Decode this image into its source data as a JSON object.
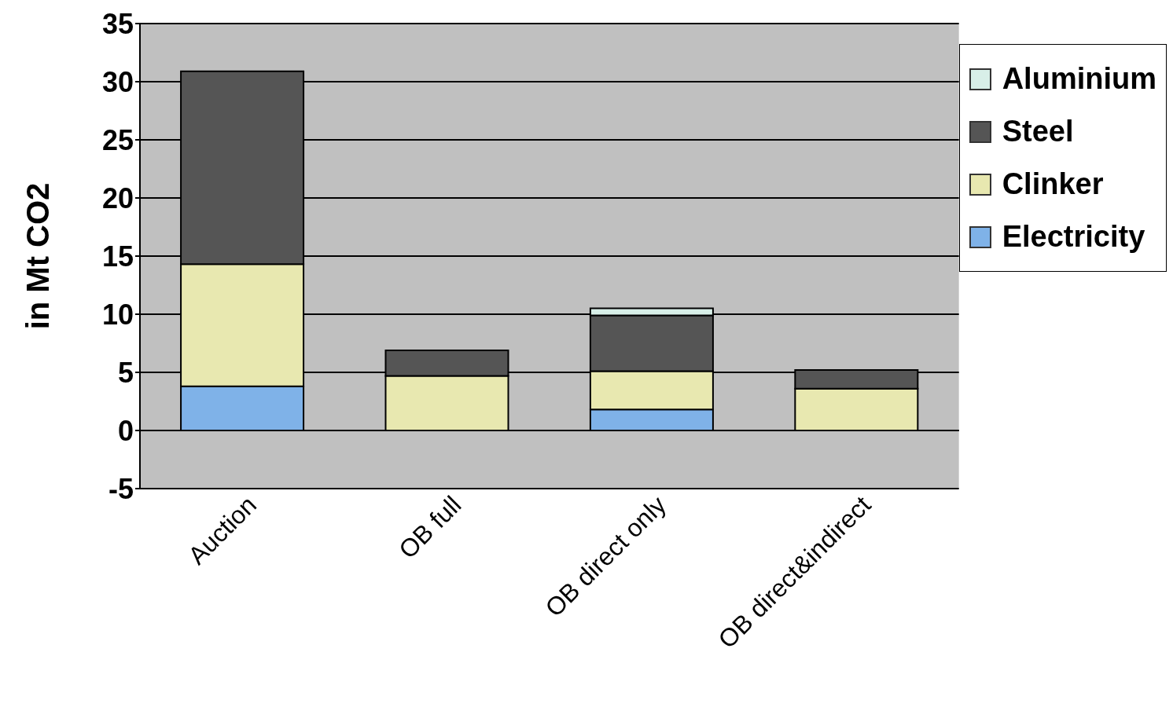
{
  "chart_data": {
    "type": "bar",
    "stacked": true,
    "ylabel": "in Mt CO2",
    "categories": [
      "Auction",
      "OB full",
      "OB direct only",
      "OB direct&indirect"
    ],
    "series": [
      {
        "name": "Electricity",
        "color": "#7fb2e8",
        "values": [
          3.8,
          0,
          1.8,
          0
        ]
      },
      {
        "name": "Clinker",
        "color": "#e8e8b0",
        "values": [
          10.5,
          4.7,
          3.3,
          3.6
        ]
      },
      {
        "name": "Steel",
        "color": "#555555",
        "values": [
          16.6,
          2.2,
          4.8,
          1.6
        ]
      },
      {
        "name": "Aluminium",
        "color": "#d8efe8",
        "values": [
          0,
          0,
          0.6,
          0
        ]
      }
    ],
    "ylim": [
      -5,
      35
    ],
    "yticks": [
      -5,
      0,
      5,
      10,
      15,
      20,
      25,
      30,
      35
    ],
    "grid": "y",
    "legend": "top right"
  }
}
